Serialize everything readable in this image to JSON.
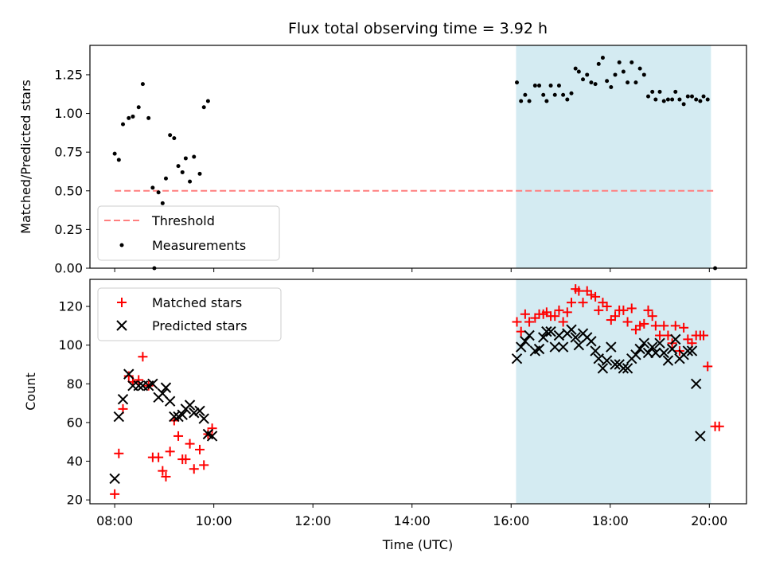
{
  "chart_data": [
    {
      "type": "scatter",
      "title": "Flux total observing time = 3.92 h",
      "xlabel": "",
      "ylabel": "Matched/Predicted stars",
      "xlim": [
        "07:30",
        "20:45"
      ],
      "ylim": [
        0,
        1.44
      ],
      "yticks": [
        0.0,
        0.25,
        0.5,
        0.75,
        1.0,
        1.25
      ],
      "ytick_labels": [
        "0.00",
        "0.25",
        "0.50",
        "0.75",
        "1.00",
        "1.25"
      ],
      "shaded_interval": [
        "16:06",
        "20:02"
      ],
      "shade_color": "#d4ebf2",
      "threshold": {
        "name": "Threshold",
        "y": 0.5,
        "x_from": "08:00",
        "x_to": "20:07",
        "color": "#ff7f7f"
      },
      "series": [
        {
          "name": "Measurements",
          "marker": "dot",
          "color": "#000000",
          "points": [
            [
              "08:00",
              0.74
            ],
            [
              "08:05",
              0.7
            ],
            [
              "08:10",
              0.93
            ],
            [
              "08:17",
              0.97
            ],
            [
              "08:22",
              0.98
            ],
            [
              "08:29",
              1.04
            ],
            [
              "08:34",
              1.19
            ],
            [
              "08:41",
              0.97
            ],
            [
              "08:46",
              0.52
            ],
            [
              "08:53",
              0.49
            ],
            [
              "08:58",
              0.42
            ],
            [
              "09:02",
              0.58
            ],
            [
              "09:07",
              0.86
            ],
            [
              "09:12",
              0.84
            ],
            [
              "09:17",
              0.66
            ],
            [
              "09:22",
              0.62
            ],
            [
              "09:26",
              0.71
            ],
            [
              "09:31",
              0.56
            ],
            [
              "09:36",
              0.72
            ],
            [
              "09:43",
              0.61
            ],
            [
              "09:48",
              1.04
            ],
            [
              "09:53",
              1.08
            ],
            [
              "08:48",
              0.0
            ],
            [
              "16:07",
              1.2
            ],
            [
              "16:12",
              1.08
            ],
            [
              "16:17",
              1.12
            ],
            [
              "16:22",
              1.08
            ],
            [
              "16:29",
              1.18
            ],
            [
              "16:34",
              1.18
            ],
            [
              "16:39",
              1.12
            ],
            [
              "16:43",
              1.08
            ],
            [
              "16:48",
              1.18
            ],
            [
              "16:53",
              1.12
            ],
            [
              "16:58",
              1.18
            ],
            [
              "17:03",
              1.12
            ],
            [
              "17:08",
              1.09
            ],
            [
              "17:13",
              1.13
            ],
            [
              "17:18",
              1.29
            ],
            [
              "17:22",
              1.27
            ],
            [
              "17:27",
              1.22
            ],
            [
              "17:32",
              1.25
            ],
            [
              "17:37",
              1.2
            ],
            [
              "17:42",
              1.19
            ],
            [
              "17:46",
              1.32
            ],
            [
              "17:51",
              1.36
            ],
            [
              "17:56",
              1.21
            ],
            [
              "18:01",
              1.17
            ],
            [
              "18:06",
              1.25
            ],
            [
              "18:11",
              1.33
            ],
            [
              "18:16",
              1.27
            ],
            [
              "18:21",
              1.2
            ],
            [
              "18:26",
              1.33
            ],
            [
              "18:31",
              1.2
            ],
            [
              "18:36",
              1.29
            ],
            [
              "18:41",
              1.25
            ],
            [
              "18:46",
              1.11
            ],
            [
              "18:51",
              1.14
            ],
            [
              "18:55",
              1.09
            ],
            [
              "19:00",
              1.14
            ],
            [
              "19:05",
              1.08
            ],
            [
              "19:10",
              1.09
            ],
            [
              "19:15",
              1.09
            ],
            [
              "19:19",
              1.14
            ],
            [
              "19:24",
              1.09
            ],
            [
              "19:29",
              1.06
            ],
            [
              "19:34",
              1.11
            ],
            [
              "19:39",
              1.11
            ],
            [
              "19:44",
              1.09
            ],
            [
              "19:49",
              1.08
            ],
            [
              "19:53",
              1.11
            ],
            [
              "19:58",
              1.09
            ],
            [
              "20:07",
              0.0
            ]
          ]
        }
      ],
      "legend": {
        "position": "lower-left",
        "entries": [
          "Threshold",
          "Measurements"
        ]
      }
    },
    {
      "type": "scatter",
      "title": "",
      "xlabel": "Time (UTC)",
      "ylabel": "Count",
      "xlim": [
        "07:30",
        "20:45"
      ],
      "ylim": [
        18,
        134
      ],
      "xticks": [
        "08:00",
        "10:00",
        "12:00",
        "14:00",
        "16:00",
        "18:00",
        "20:00"
      ],
      "yticks": [
        20,
        40,
        60,
        80,
        100,
        120
      ],
      "shaded_interval": [
        "16:06",
        "20:02"
      ],
      "shade_color": "#d4ebf2",
      "series": [
        {
          "name": "Matched stars",
          "marker": "plus",
          "color": "#ff0000",
          "points": [
            [
              "08:00",
              23
            ],
            [
              "08:05",
              44
            ],
            [
              "08:10",
              67
            ],
            [
              "08:17",
              84
            ],
            [
              "08:22",
              81
            ],
            [
              "08:29",
              82
            ],
            [
              "08:34",
              94
            ],
            [
              "08:41",
              79
            ],
            [
              "08:46",
              42
            ],
            [
              "08:53",
              42
            ],
            [
              "08:58",
              35
            ],
            [
              "09:02",
              32
            ],
            [
              "09:07",
              45
            ],
            [
              "09:12",
              61
            ],
            [
              "09:17",
              53
            ],
            [
              "09:22",
              41
            ],
            [
              "09:26",
              41
            ],
            [
              "09:31",
              49
            ],
            [
              "09:36",
              36
            ],
            [
              "09:43",
              46
            ],
            [
              "09:48",
              38
            ],
            [
              "09:53",
              54
            ],
            [
              "09:58",
              57
            ],
            [
              "16:07",
              112
            ],
            [
              "16:12",
              107
            ],
            [
              "16:17",
              116
            ],
            [
              "16:22",
              112
            ],
            [
              "16:29",
              114
            ],
            [
              "16:34",
              116
            ],
            [
              "16:39",
              116
            ],
            [
              "16:43",
              117
            ],
            [
              "16:48",
              115
            ],
            [
              "16:53",
              115
            ],
            [
              "16:58",
              118
            ],
            [
              "17:03",
              112
            ],
            [
              "17:08",
              117
            ],
            [
              "17:13",
              122
            ],
            [
              "17:18",
              129
            ],
            [
              "17:22",
              128
            ],
            [
              "17:27",
              122
            ],
            [
              "17:32",
              128
            ],
            [
              "17:37",
              126
            ],
            [
              "17:42",
              125
            ],
            [
              "17:46",
              118
            ],
            [
              "17:51",
              122
            ],
            [
              "17:56",
              120
            ],
            [
              "18:01",
              113
            ],
            [
              "18:06",
              115
            ],
            [
              "18:11",
              118
            ],
            [
              "18:16",
              118
            ],
            [
              "18:21",
              112
            ],
            [
              "18:26",
              119
            ],
            [
              "18:31",
              108
            ],
            [
              "18:36",
              110
            ],
            [
              "18:41",
              111
            ],
            [
              "18:46",
              118
            ],
            [
              "18:51",
              115
            ],
            [
              "18:55",
              110
            ],
            [
              "19:00",
              105
            ],
            [
              "19:05",
              110
            ],
            [
              "19:10",
              105
            ],
            [
              "19:15",
              101
            ],
            [
              "19:19",
              110
            ],
            [
              "19:24",
              97
            ],
            [
              "19:29",
              109
            ],
            [
              "19:34",
              103
            ],
            [
              "19:39",
              101
            ],
            [
              "19:44",
              105
            ],
            [
              "19:49",
              105
            ],
            [
              "19:53",
              105
            ],
            [
              "19:58",
              89
            ],
            [
              "20:07",
              58
            ],
            [
              "20:12",
              58
            ]
          ]
        },
        {
          "name": "Predicted stars",
          "marker": "x",
          "color": "#000000",
          "points": [
            [
              "08:00",
              31
            ],
            [
              "08:05",
              63
            ],
            [
              "08:10",
              72
            ],
            [
              "08:17",
              85
            ],
            [
              "08:22",
              79
            ],
            [
              "08:29",
              79
            ],
            [
              "08:34",
              79
            ],
            [
              "08:41",
              79
            ],
            [
              "08:46",
              80
            ],
            [
              "08:53",
              73
            ],
            [
              "08:58",
              75
            ],
            [
              "09:02",
              78
            ],
            [
              "09:07",
              71
            ],
            [
              "09:12",
              63
            ],
            [
              "09:17",
              63
            ],
            [
              "09:22",
              64
            ],
            [
              "09:26",
              67
            ],
            [
              "09:31",
              69
            ],
            [
              "09:36",
              65
            ],
            [
              "09:43",
              66
            ],
            [
              "09:48",
              62
            ],
            [
              "09:53",
              54
            ],
            [
              "09:58",
              53
            ],
            [
              "16:07",
              93
            ],
            [
              "16:12",
              99
            ],
            [
              "16:17",
              102
            ],
            [
              "16:22",
              105
            ],
            [
              "16:29",
              97
            ],
            [
              "16:34",
              98
            ],
            [
              "16:39",
              104
            ],
            [
              "16:43",
              107
            ],
            [
              "16:48",
              107
            ],
            [
              "16:53",
              99
            ],
            [
              "16:58",
              105
            ],
            [
              "17:03",
              99
            ],
            [
              "17:08",
              106
            ],
            [
              "17:13",
              108
            ],
            [
              "17:18",
              104
            ],
            [
              "17:22",
              100
            ],
            [
              "17:27",
              106
            ],
            [
              "17:32",
              104
            ],
            [
              "17:37",
              102
            ],
            [
              "17:42",
              97
            ],
            [
              "17:46",
              93
            ],
            [
              "17:51",
              88
            ],
            [
              "17:56",
              92
            ],
            [
              "18:01",
              99
            ],
            [
              "18:06",
              90
            ],
            [
              "18:11",
              90
            ],
            [
              "18:16",
              88
            ],
            [
              "18:21",
              88
            ],
            [
              "18:26",
              93
            ],
            [
              "18:31",
              95
            ],
            [
              "18:36",
              98
            ],
            [
              "18:41",
              101
            ],
            [
              "18:46",
              96
            ],
            [
              "18:51",
              99
            ],
            [
              "18:55",
              96
            ],
            [
              "19:00",
              101
            ],
            [
              "19:05",
              96
            ],
            [
              "19:10",
              92
            ],
            [
              "19:15",
              98
            ],
            [
              "19:19",
              103
            ],
            [
              "19:24",
              93
            ],
            [
              "19:29",
              95
            ],
            [
              "19:34",
              97
            ],
            [
              "19:39",
              97
            ],
            [
              "19:44",
              80
            ],
            [
              "19:49",
              53
            ]
          ]
        }
      ],
      "legend": {
        "position": "upper-left",
        "entries": [
          "Matched stars",
          "Predicted stars"
        ]
      }
    }
  ]
}
